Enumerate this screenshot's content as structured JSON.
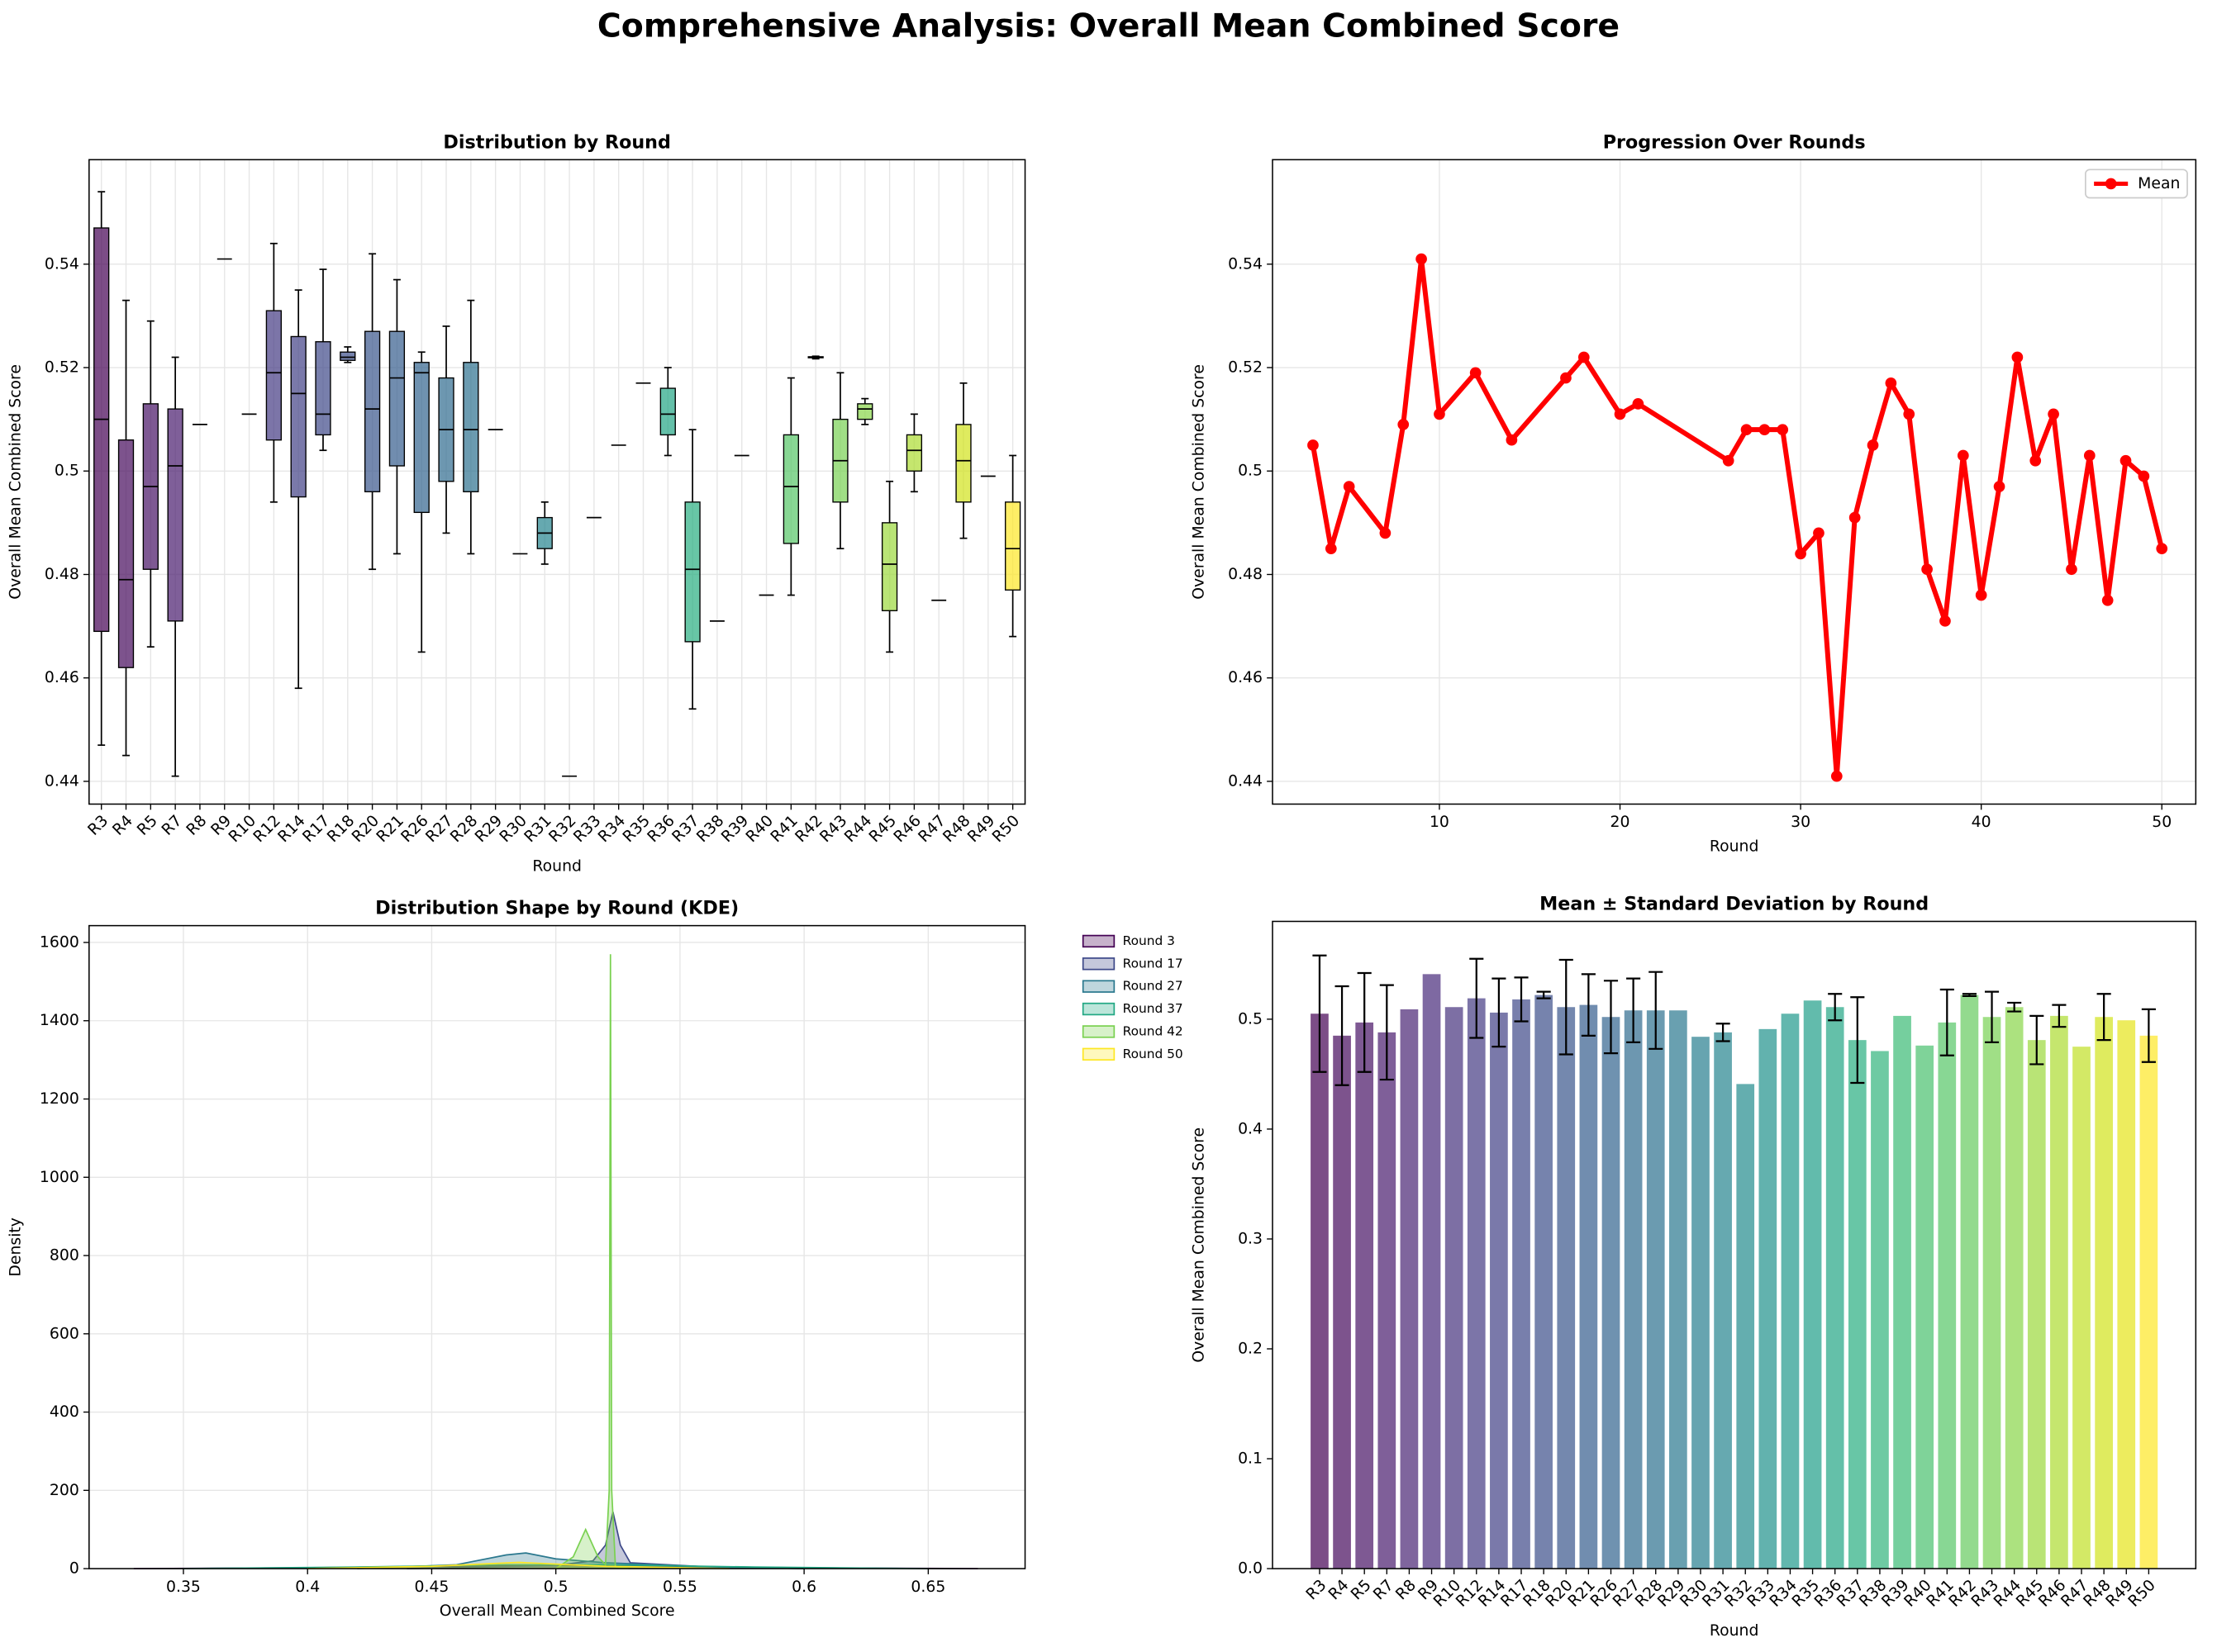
{
  "title": "Comprehensive Analysis: Overall Mean Combined Score",
  "chart_data": [
    {
      "type": "box",
      "title": "Distribution by Round",
      "x_label": "Round",
      "y_label": "Overall Mean Combined Score",
      "categories": [
        "R3",
        "R4",
        "R5",
        "R7",
        "R8",
        "R9",
        "R10",
        "R12",
        "R14",
        "R17",
        "R18",
        "R20",
        "R21",
        "R26",
        "R27",
        "R28",
        "R29",
        "R30",
        "R31",
        "R32",
        "R33",
        "R34",
        "R35",
        "R36",
        "R37",
        "R38",
        "R39",
        "R40",
        "R41",
        "R42",
        "R43",
        "R44",
        "R45",
        "R46",
        "R47",
        "R48",
        "R49",
        "R50"
      ],
      "boxes": [
        {
          "low": 0.447,
          "q1": 0.469,
          "median": 0.51,
          "q3": 0.547,
          "high": 0.554
        },
        {
          "low": 0.445,
          "q1": 0.462,
          "median": 0.479,
          "q3": 0.506,
          "high": 0.533
        },
        {
          "low": 0.466,
          "q1": 0.481,
          "median": 0.497,
          "q3": 0.513,
          "high": 0.529
        },
        {
          "low": 0.441,
          "q1": 0.471,
          "median": 0.501,
          "q3": 0.512,
          "high": 0.522
        },
        {
          "median": 0.509
        },
        {
          "median": 0.541
        },
        {
          "median": 0.511
        },
        {
          "low": 0.494,
          "q1": 0.506,
          "median": 0.519,
          "q3": 0.531,
          "high": 0.544
        },
        {
          "low": 0.458,
          "q1": 0.495,
          "median": 0.515,
          "q3": 0.526,
          "high": 0.535
        },
        {
          "low": 0.504,
          "q1": 0.507,
          "median": 0.511,
          "q3": 0.525,
          "high": 0.539
        },
        {
          "low": 0.521,
          "q1": 0.5214,
          "median": 0.522,
          "q3": 0.523,
          "high": 0.524
        },
        {
          "low": 0.481,
          "q1": 0.496,
          "median": 0.512,
          "q3": 0.527,
          "high": 0.542
        },
        {
          "low": 0.484,
          "q1": 0.501,
          "median": 0.518,
          "q3": 0.527,
          "high": 0.537
        },
        {
          "low": 0.465,
          "q1": 0.492,
          "median": 0.519,
          "q3": 0.521,
          "high": 0.523
        },
        {
          "low": 0.488,
          "q1": 0.498,
          "median": 0.508,
          "q3": 0.518,
          "high": 0.528
        },
        {
          "low": 0.484,
          "q1": 0.496,
          "median": 0.508,
          "q3": 0.521,
          "high": 0.533
        },
        {
          "median": 0.508
        },
        {
          "median": 0.484
        },
        {
          "low": 0.482,
          "q1": 0.485,
          "median": 0.488,
          "q3": 0.491,
          "high": 0.494
        },
        {
          "median": 0.441
        },
        {
          "median": 0.491
        },
        {
          "median": 0.505
        },
        {
          "median": 0.517
        },
        {
          "low": 0.503,
          "q1": 0.507,
          "median": 0.511,
          "q3": 0.516,
          "high": 0.52
        },
        {
          "low": 0.454,
          "q1": 0.467,
          "median": 0.481,
          "q3": 0.494,
          "high": 0.508
        },
        {
          "median": 0.471
        },
        {
          "median": 0.503
        },
        {
          "median": 0.476
        },
        {
          "low": 0.476,
          "q1": 0.486,
          "median": 0.497,
          "q3": 0.507,
          "high": 0.518
        },
        {
          "low": 0.5217,
          "q1": 0.5219,
          "median": 0.522,
          "q3": 0.5221,
          "high": 0.5222
        },
        {
          "low": 0.485,
          "q1": 0.494,
          "median": 0.502,
          "q3": 0.51,
          "high": 0.519
        },
        {
          "low": 0.509,
          "q1": 0.51,
          "median": 0.512,
          "q3": 0.513,
          "high": 0.514
        },
        {
          "low": 0.465,
          "q1": 0.473,
          "median": 0.482,
          "q3": 0.49,
          "high": 0.498
        },
        {
          "low": 0.496,
          "q1": 0.5,
          "median": 0.504,
          "q3": 0.507,
          "high": 0.511
        },
        {
          "median": 0.475
        },
        {
          "low": 0.487,
          "q1": 0.494,
          "median": 0.502,
          "q3": 0.509,
          "high": 0.517
        },
        {
          "median": 0.499
        },
        {
          "low": 0.468,
          "q1": 0.477,
          "median": 0.485,
          "q3": 0.494,
          "high": 0.503
        }
      ],
      "colors": [
        "#440154",
        "#460a5d",
        "#471365",
        "#481b6d",
        "#482374",
        "#472a7a",
        "#46327e",
        "#443a83",
        "#424086",
        "#3f4889",
        "#3c4f8a",
        "#39568c",
        "#355d8d",
        "#32648e",
        "#2f6b8e",
        "#2c718e",
        "#2a788e",
        "#277e8e",
        "#25848e",
        "#228b8d",
        "#20918c",
        "#1f988b",
        "#1f9e89",
        "#22a585",
        "#28ae80",
        "#30b47c",
        "#3bbb75",
        "#48c16e",
        "#56c667",
        "#65cb5e",
        "#77d153",
        "#89d548",
        "#9bd93c",
        "#addc30",
        "#c0df25",
        "#d2e21b",
        "#e5e419",
        "#fde725"
      ],
      "alpha": 0.7,
      "ylim": [
        0.4356,
        0.5602
      ],
      "yticks": [
        0.44,
        0.46,
        0.48,
        0.5,
        0.52,
        0.54
      ],
      "grid": true
    },
    {
      "type": "line",
      "title": "Progression Over Rounds",
      "x_label": "Round",
      "y_label": "Overall Mean Combined Score",
      "x": [
        3,
        4,
        5,
        7,
        8,
        9,
        10,
        12,
        14,
        17,
        18,
        20,
        21,
        26,
        27,
        28,
        29,
        30,
        31,
        32,
        33,
        34,
        35,
        36,
        37,
        38,
        39,
        40,
        41,
        42,
        43,
        44,
        45,
        46,
        47,
        48,
        49,
        50
      ],
      "series": [
        {
          "name": "Mean",
          "color": "#ff0000",
          "values": [
            0.505,
            0.485,
            0.497,
            0.488,
            0.509,
            0.541,
            0.511,
            0.519,
            0.506,
            0.518,
            0.522,
            0.511,
            0.513,
            0.502,
            0.508,
            0.508,
            0.508,
            0.484,
            0.488,
            0.441,
            0.491,
            0.505,
            0.517,
            0.511,
            0.481,
            0.471,
            0.503,
            0.476,
            0.497,
            0.522,
            0.502,
            0.511,
            0.481,
            0.503,
            0.475,
            0.502,
            0.499,
            0.485
          ]
        }
      ],
      "xlim": [
        0.76,
        51.88
      ],
      "xticks": [
        10,
        20,
        30,
        40,
        50
      ],
      "ylim": [
        0.4356,
        0.5602
      ],
      "yticks": [
        0.44,
        0.46,
        0.48,
        0.5,
        0.52,
        0.54
      ],
      "grid": true,
      "legend": "upper right"
    },
    {
      "type": "kde",
      "title": "Distribution Shape by Round (KDE)",
      "x_label": "Overall Mean Combined Score",
      "y_label": "Density",
      "series": [
        {
          "name": "Round 3",
          "color": "#440154",
          "x": [
            0.33,
            0.4,
            0.45,
            0.5,
            0.55,
            0.6,
            0.67
          ],
          "values": [
            0,
            2,
            6,
            8,
            6,
            2,
            0
          ]
        },
        {
          "name": "Round 17",
          "color": "#3e4989",
          "x": [
            0.44,
            0.5,
            0.515,
            0.52,
            0.523,
            0.526,
            0.53,
            0.56,
            0.6
          ],
          "values": [
            0,
            8,
            20,
            60,
            145,
            60,
            15,
            5,
            0
          ]
        },
        {
          "name": "Round 27",
          "color": "#2a788e",
          "x": [
            0.42,
            0.46,
            0.48,
            0.488,
            0.5,
            0.52,
            0.56,
            0.6
          ],
          "values": [
            0,
            10,
            35,
            40,
            25,
            15,
            5,
            0
          ]
        },
        {
          "name": "Round 37",
          "color": "#22a884",
          "x": [
            0.35,
            0.42,
            0.48,
            0.52,
            0.58,
            0.65
          ],
          "values": [
            0,
            4,
            10,
            10,
            4,
            0
          ]
        },
        {
          "name": "Round 42",
          "color": "#7ad151",
          "x": [
            0.5,
            0.507,
            0.512,
            0.517,
            0.52,
            0.5215,
            0.522,
            0.5225,
            0.524,
            0.53
          ],
          "values": [
            0,
            30,
            100,
            30,
            10,
            200,
            1570,
            200,
            5,
            0
          ]
        },
        {
          "name": "Round 50",
          "color": "#fde725",
          "x": [
            0.4,
            0.45,
            0.485,
            0.52,
            0.57
          ],
          "values": [
            0,
            6,
            16,
            6,
            0
          ]
        }
      ],
      "alpha": 0.3,
      "xlim": [
        0.312,
        0.689
      ],
      "xticks": [
        0.35,
        0.4,
        0.45,
        0.5,
        0.55,
        0.6,
        0.65
      ],
      "ylim": [
        0,
        1643
      ],
      "yticks": [
        0,
        200,
        400,
        600,
        800,
        1000,
        1200,
        1400,
        1600
      ],
      "grid": true,
      "legend": "outside upper right"
    },
    {
      "type": "bar",
      "title": "Mean ± Standard Deviation by Round",
      "x_label": "Round",
      "y_label": "Overall Mean Combined Score",
      "categories": [
        "R3",
        "R4",
        "R5",
        "R7",
        "R8",
        "R9",
        "R10",
        "R12",
        "R14",
        "R17",
        "R18",
        "R20",
        "R21",
        "R26",
        "R27",
        "R28",
        "R29",
        "R30",
        "R31",
        "R32",
        "R33",
        "R34",
        "R35",
        "R36",
        "R37",
        "R38",
        "R39",
        "R40",
        "R41",
        "R42",
        "R43",
        "R44",
        "R45",
        "R46",
        "R47",
        "R48",
        "R49",
        "R50"
      ],
      "values": [
        0.505,
        0.485,
        0.497,
        0.488,
        0.509,
        0.541,
        0.511,
        0.519,
        0.506,
        0.518,
        0.522,
        0.511,
        0.513,
        0.502,
        0.508,
        0.508,
        0.508,
        0.484,
        0.488,
        0.441,
        0.491,
        0.505,
        0.517,
        0.511,
        0.481,
        0.471,
        0.503,
        0.476,
        0.497,
        0.522,
        0.502,
        0.511,
        0.481,
        0.503,
        0.475,
        0.502,
        0.499,
        0.485
      ],
      "errors": [
        0.053,
        0.045,
        0.045,
        0.043,
        null,
        null,
        null,
        0.036,
        0.031,
        0.02,
        0.003,
        0.043,
        0.028,
        0.033,
        0.029,
        0.035,
        null,
        null,
        0.008,
        null,
        null,
        null,
        null,
        0.012,
        0.039,
        null,
        null,
        null,
        0.03,
        0.001,
        0.023,
        0.004,
        0.022,
        0.01,
        null,
        0.021,
        null,
        0.024
      ],
      "colors": [
        "#440154",
        "#460a5d",
        "#471365",
        "#481b6d",
        "#482374",
        "#472a7a",
        "#46327e",
        "#443a83",
        "#424086",
        "#3f4889",
        "#3c4f8a",
        "#39568c",
        "#355d8d",
        "#32648e",
        "#2f6b8e",
        "#2c718e",
        "#2a788e",
        "#277e8e",
        "#25848e",
        "#228b8d",
        "#20918c",
        "#1f988b",
        "#1f9e89",
        "#22a585",
        "#28ae80",
        "#30b47c",
        "#3bbb75",
        "#48c16e",
        "#56c667",
        "#65cb5e",
        "#77d153",
        "#89d548",
        "#9bd93c",
        "#addc30",
        "#c0df25",
        "#d2e21b",
        "#e5e419",
        "#fde725"
      ],
      "alpha": 0.7,
      "ylim": [
        0,
        0.589
      ],
      "yticks": [
        {
          "value": 0,
          "label": "0.0"
        },
        0.1,
        0.2,
        0.3,
        0.4,
        0.5
      ],
      "grid": false
    }
  ]
}
